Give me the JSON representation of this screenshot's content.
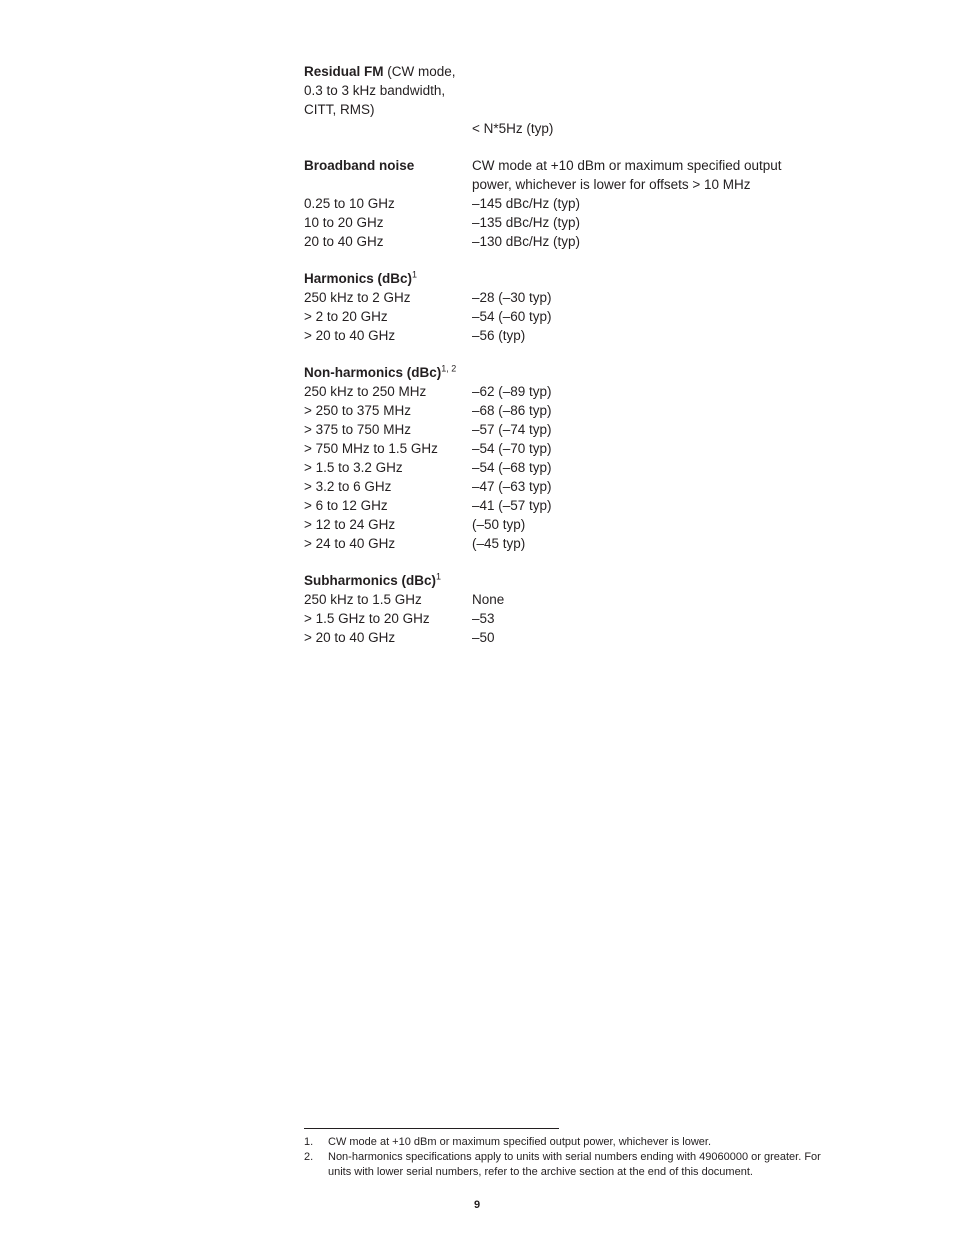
{
  "residual_fm": {
    "title": "Residual FM",
    "title_suffix": " (CW mode, 0.3 to 3 kHz bandwidth, CITT, RMS)",
    "value": "< N*5Hz (typ)"
  },
  "broadband_noise": {
    "title": "Broadband noise",
    "desc_line1": "CW mode at +10 dBm or maximum specified output",
    "desc_line2": "power, whichever is lower for offsets > 10 MHz",
    "rows": [
      {
        "label": "0.25 to 10 GHz",
        "value": "–145 dBc/Hz (typ)"
      },
      {
        "label": "10 to 20 GHz",
        "value": "–135 dBc/Hz (typ)"
      },
      {
        "label": "20 to 40 GHz",
        "value": "–130 dBc/Hz (typ)"
      }
    ]
  },
  "harmonics": {
    "title": "Harmonics (dBc)",
    "sup": "1",
    "rows": [
      {
        "label": "250 kHz to 2 GHz",
        "value": "–28 (–30 typ)"
      },
      {
        "label": "> 2 to 20 GHz",
        "value": "–54 (–60 typ)"
      },
      {
        "label": "> 20 to 40 GHz",
        "value": "–56 (typ)"
      }
    ]
  },
  "non_harmonics": {
    "title": "Non-harmonics (dBc)",
    "sup": "1, 2",
    "rows": [
      {
        "label": "250 kHz to 250 MHz",
        "value": "–62 (–89 typ)"
      },
      {
        "label": "> 250 to 375 MHz",
        "value": "–68 (–86 typ)"
      },
      {
        "label": "> 375 to 750 MHz",
        "value": "–57 (–74 typ)"
      },
      {
        "label": "> 750 MHz to 1.5 GHz",
        "value": "–54 (–70 typ)"
      },
      {
        "label": "> 1.5 to 3.2 GHz",
        "value": "–54 (–68 typ)"
      },
      {
        "label": "> 3.2 to 6 GHz",
        "value": "–47 (–63 typ)"
      },
      {
        "label": "> 6 to 12 GHz",
        "value": "–41 (–57 typ)"
      },
      {
        "label": "> 12 to 24 GHz",
        "value": "(–50 typ)"
      },
      {
        "label": "> 24 to 40 GHz",
        "value": "(–45 typ)"
      }
    ]
  },
  "subharmonics": {
    "title": "Subharmonics (dBc)",
    "sup": "1",
    "rows": [
      {
        "label": "250 kHz to 1.5 GHz",
        "value": "None"
      },
      {
        "label": "> 1.5 GHz to 20 GHz",
        "value": "–53"
      },
      {
        "label": "> 20 to 40 GHz",
        "value": "–50"
      }
    ]
  },
  "footnotes": [
    {
      "num": "1.",
      "text": "CW mode at +10 dBm or maximum specified output power, whichever is lower."
    },
    {
      "num": "2.",
      "text": "Non-harmonics specifications apply to units with serial numbers ending with 49060000 or greater. For units with lower serial numbers, refer to the archive section at the end of this document."
    }
  ],
  "page_number": "9"
}
